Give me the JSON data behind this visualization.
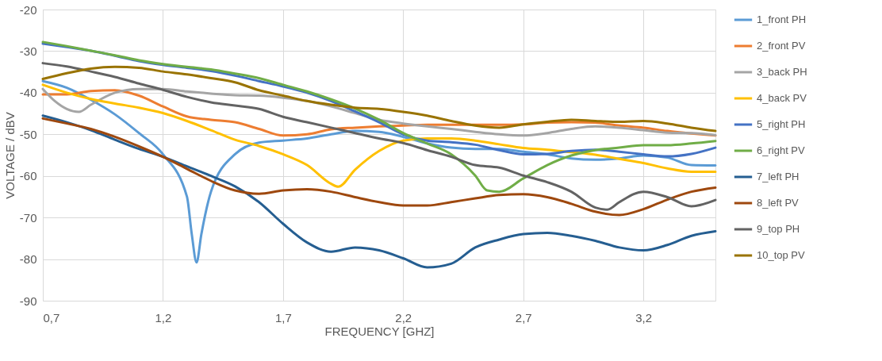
{
  "chart_data": {
    "type": "line",
    "xlabel": "FREQUENCY [GHZ]",
    "ylabel": "VOLTAGE / dBV",
    "xlim": [
      0.7,
      3.5
    ],
    "xticks": [
      {
        "value": 0.7,
        "label": "0,7"
      },
      {
        "value": 1.2,
        "label": "1,2"
      },
      {
        "value": 1.7,
        "label": "1,7"
      },
      {
        "value": 2.2,
        "label": "2,2"
      },
      {
        "value": 2.7,
        "label": "2,7"
      },
      {
        "value": 3.2,
        "label": "3,2"
      }
    ],
    "ylim": [
      -90,
      -20
    ],
    "yticks": [
      -90,
      -80,
      -70,
      -60,
      -50,
      -40,
      -30,
      -20
    ],
    "grid": true,
    "legend": "right",
    "marker": "none",
    "line_style": "solid",
    "series": [
      {
        "name": "1_front PH",
        "color": "#5b9bd5",
        "x": [
          0.7,
          0.8,
          0.9,
          1.0,
          1.1,
          1.2,
          1.3,
          1.32,
          1.34,
          1.36,
          1.4,
          1.5,
          1.6,
          1.7,
          1.8,
          1.9,
          2.0,
          2.1,
          2.2,
          2.3,
          2.4,
          2.5,
          2.6,
          2.7,
          2.8,
          2.9,
          3.0,
          3.1,
          3.2,
          3.3,
          3.4,
          3.5
        ],
        "values": [
          -37.2,
          -38.8,
          -41.7,
          -45.2,
          -49.7,
          -54.8,
          -65,
          -74,
          -80.8,
          -74,
          -63.8,
          -54.8,
          -52,
          -51.5,
          -51,
          -50,
          -49.2,
          -49.4,
          -50.6,
          -52.2,
          -53.2,
          -53.5,
          -53.5,
          -54.2,
          -54.8,
          -55.8,
          -56.1,
          -55.8,
          -55.1,
          -55.6,
          -57.4,
          -57.5
        ]
      },
      {
        "name": "2_front PV",
        "color": "#ed7d31",
        "x": [
          0.7,
          0.8,
          0.9,
          1.0,
          1.1,
          1.2,
          1.3,
          1.4,
          1.5,
          1.6,
          1.7,
          1.8,
          1.9,
          2.0,
          2.1,
          2.2,
          2.3,
          2.4,
          2.5,
          2.6,
          2.7,
          2.8,
          2.9,
          3.0,
          3.1,
          3.2,
          3.3,
          3.4,
          3.5
        ],
        "values": [
          -40.4,
          -40.4,
          -39.6,
          -39.4,
          -40.7,
          -43.3,
          -45.7,
          -46.5,
          -47.1,
          -48.7,
          -50.3,
          -50,
          -48.8,
          -48.4,
          -48.1,
          -47.9,
          -47.7,
          -47.7,
          -47.7,
          -47.7,
          -47.6,
          -47.2,
          -47.1,
          -47.2,
          -47.9,
          -48.4,
          -49.2,
          -49.8,
          -50.3
        ]
      },
      {
        "name": "3_back PH",
        "color": "#a5a5a5",
        "x": [
          0.7,
          0.75,
          0.8,
          0.85,
          0.9,
          1.0,
          1.1,
          1.2,
          1.3,
          1.4,
          1.5,
          1.6,
          1.7,
          1.8,
          1.9,
          2.0,
          2.1,
          2.2,
          2.3,
          2.4,
          2.5,
          2.6,
          2.7,
          2.8,
          2.9,
          3.0,
          3.1,
          3.2,
          3.3,
          3.4,
          3.5
        ],
        "values": [
          -39.1,
          -42,
          -43.9,
          -44.6,
          -42.9,
          -40,
          -39.1,
          -39.1,
          -39.7,
          -40.2,
          -40.6,
          -40.7,
          -41.2,
          -42,
          -43.3,
          -44.9,
          -46.5,
          -47.4,
          -48.1,
          -48.7,
          -49.4,
          -50,
          -50.3,
          -49.7,
          -48.7,
          -48.1,
          -48.4,
          -49,
          -49.6,
          -49.7,
          -50.2
        ]
      },
      {
        "name": "4_back PV",
        "color": "#ffc000",
        "x": [
          0.7,
          0.8,
          0.9,
          1.0,
          1.1,
          1.2,
          1.3,
          1.4,
          1.5,
          1.6,
          1.7,
          1.8,
          1.9,
          1.93,
          2.0,
          2.1,
          2.2,
          2.3,
          2.4,
          2.5,
          2.6,
          2.7,
          2.8,
          2.9,
          3.0,
          3.1,
          3.2,
          3.3,
          3.4,
          3.5
        ],
        "values": [
          -38.1,
          -40,
          -41.5,
          -42.6,
          -43.6,
          -44.9,
          -46.8,
          -49,
          -51.3,
          -52.8,
          -54.8,
          -57.4,
          -61.9,
          -62.6,
          -58.5,
          -54,
          -51.5,
          -51,
          -51,
          -51.5,
          -52.4,
          -53.3,
          -53.7,
          -54.3,
          -54.9,
          -55.9,
          -56.9,
          -58.2,
          -59,
          -59
        ]
      },
      {
        "name": "5_right PH",
        "color": "#4472c4",
        "x": [
          0.7,
          0.8,
          0.9,
          1.0,
          1.1,
          1.2,
          1.3,
          1.4,
          1.5,
          1.6,
          1.7,
          1.8,
          1.9,
          2.0,
          2.1,
          2.2,
          2.3,
          2.4,
          2.5,
          2.6,
          2.7,
          2.8,
          2.9,
          3.0,
          3.1,
          3.2,
          3.3,
          3.4,
          3.5
        ],
        "values": [
          -28.2,
          -29,
          -29.9,
          -31.1,
          -32.4,
          -33.3,
          -34,
          -34.8,
          -35.9,
          -37.2,
          -38.5,
          -40,
          -42,
          -44.5,
          -47.1,
          -50,
          -51.5,
          -51.9,
          -52.5,
          -53.8,
          -54.8,
          -54.7,
          -54,
          -53.7,
          -54.2,
          -54.8,
          -55.3,
          -54.7,
          -53.2
        ]
      },
      {
        "name": "6_right PV",
        "color": "#70ad47",
        "x": [
          0.7,
          0.8,
          0.9,
          1.0,
          1.1,
          1.2,
          1.3,
          1.4,
          1.5,
          1.6,
          1.7,
          1.8,
          1.9,
          2.0,
          2.1,
          2.2,
          2.3,
          2.4,
          2.5,
          2.55,
          2.6,
          2.7,
          2.8,
          2.9,
          3.0,
          3.1,
          3.2,
          3.3,
          3.4,
          3.5
        ],
        "values": [
          -27.8,
          -28.8,
          -29.9,
          -31,
          -32.2,
          -33.1,
          -33.8,
          -34.4,
          -35.4,
          -36.5,
          -38.1,
          -39.7,
          -41.6,
          -43.8,
          -46.5,
          -49.7,
          -52.2,
          -54.8,
          -59.9,
          -63.5,
          -63.8,
          -60.6,
          -57.4,
          -55.1,
          -53.8,
          -53.2,
          -52.6,
          -52.6,
          -52.2,
          -51.6
        ]
      },
      {
        "name": "7_left PH",
        "color": "#255e91",
        "x": [
          0.7,
          0.8,
          0.9,
          1.0,
          1.1,
          1.2,
          1.3,
          1.4,
          1.5,
          1.6,
          1.7,
          1.8,
          1.9,
          2.0,
          2.1,
          2.2,
          2.3,
          2.4,
          2.5,
          2.6,
          2.7,
          2.8,
          2.9,
          3.0,
          3.1,
          3.2,
          3.3,
          3.4,
          3.5
        ],
        "values": [
          -45.5,
          -47.1,
          -49,
          -51.3,
          -53.5,
          -55.4,
          -57.7,
          -60,
          -62.5,
          -66.3,
          -71.5,
          -76,
          -78.2,
          -77.2,
          -77.9,
          -79.8,
          -82,
          -81.1,
          -77.2,
          -75.3,
          -74,
          -73.7,
          -74.4,
          -75.6,
          -77.2,
          -77.9,
          -76.6,
          -74.4,
          -73.3
        ]
      },
      {
        "name": "8_left PV",
        "color": "#9e480e",
        "x": [
          0.7,
          0.8,
          0.9,
          1.0,
          1.1,
          1.2,
          1.3,
          1.4,
          1.5,
          1.6,
          1.7,
          1.8,
          1.9,
          2.0,
          2.1,
          2.2,
          2.3,
          2.4,
          2.5,
          2.6,
          2.7,
          2.8,
          2.9,
          3.0,
          3.1,
          3.2,
          3.3,
          3.4,
          3.5
        ],
        "values": [
          -46.2,
          -47.4,
          -48.7,
          -50.6,
          -52.9,
          -55.4,
          -58.3,
          -61.2,
          -63.5,
          -64.3,
          -63.5,
          -63.2,
          -63.8,
          -65.1,
          -66.3,
          -67.1,
          -67.1,
          -66.3,
          -65.4,
          -64.6,
          -64.4,
          -65.1,
          -66.7,
          -68.6,
          -69.4,
          -68,
          -65.7,
          -63.8,
          -62.8
        ]
      },
      {
        "name": "9_top PH",
        "color": "#636363",
        "x": [
          0.7,
          0.8,
          0.9,
          1.0,
          1.1,
          1.2,
          1.3,
          1.4,
          1.5,
          1.6,
          1.7,
          1.8,
          1.9,
          2.0,
          2.1,
          2.2,
          2.3,
          2.4,
          2.5,
          2.6,
          2.7,
          2.8,
          2.9,
          3.0,
          3.05,
          3.1,
          3.2,
          3.3,
          3.4,
          3.5
        ],
        "values": [
          -32.9,
          -33.7,
          -34.9,
          -36.2,
          -37.8,
          -39.3,
          -41,
          -42.3,
          -43.1,
          -43.9,
          -45.8,
          -47.1,
          -48.4,
          -49.7,
          -51,
          -52.1,
          -53.8,
          -55.4,
          -57.4,
          -58,
          -59.9,
          -61.5,
          -63.8,
          -67.6,
          -68.1,
          -66.3,
          -63.8,
          -65.1,
          -67.3,
          -65.8
        ]
      },
      {
        "name": "10_top PV",
        "color": "#997300",
        "x": [
          0.7,
          0.8,
          0.9,
          1.0,
          1.1,
          1.2,
          1.3,
          1.4,
          1.5,
          1.6,
          1.7,
          1.8,
          1.9,
          2.0,
          2.1,
          2.2,
          2.3,
          2.4,
          2.5,
          2.6,
          2.7,
          2.8,
          2.9,
          3.0,
          3.1,
          3.2,
          3.3,
          3.4,
          3.5
        ],
        "values": [
          -36.7,
          -35.3,
          -34.2,
          -33.8,
          -34,
          -34.9,
          -35.6,
          -36.5,
          -37.5,
          -39.4,
          -40.7,
          -42,
          -42.9,
          -43.6,
          -43.9,
          -44.6,
          -45.5,
          -46.8,
          -47.9,
          -48.4,
          -47.6,
          -47,
          -46.5,
          -46.8,
          -47,
          -46.8,
          -47.4,
          -48.4,
          -49.2
        ]
      }
    ]
  }
}
